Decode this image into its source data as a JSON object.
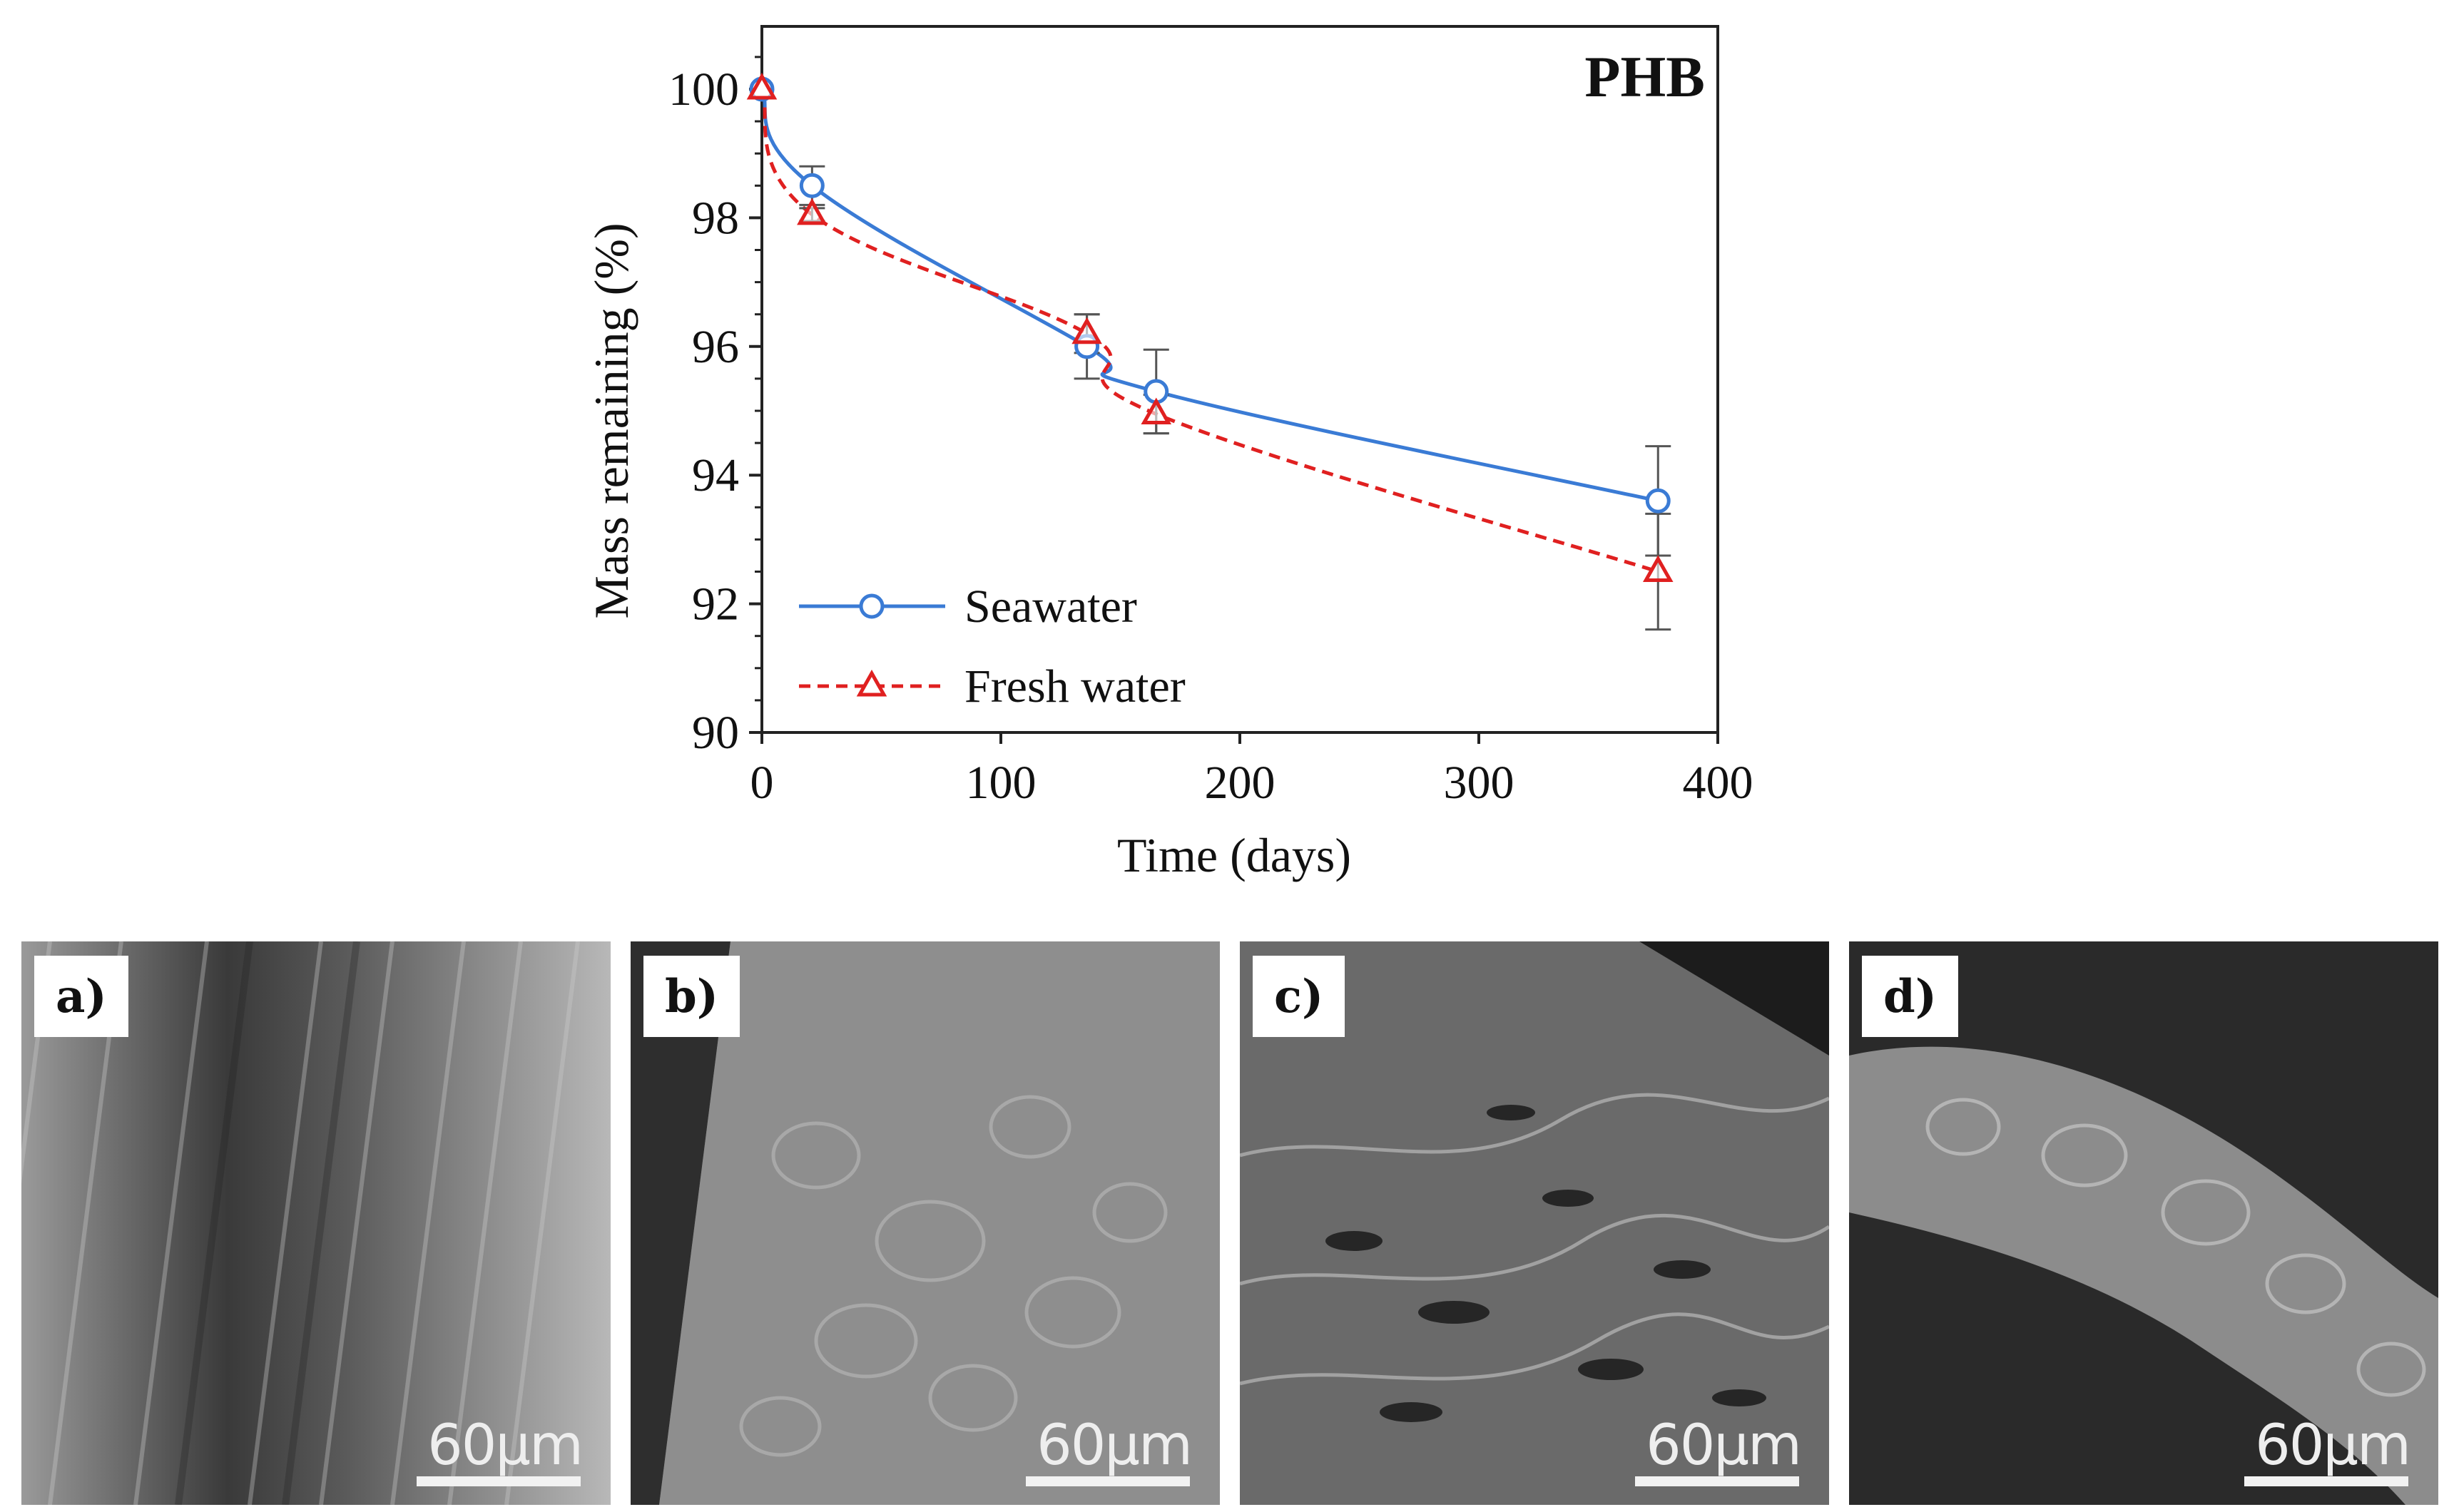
{
  "chart_data": {
    "type": "line",
    "title": "PHB",
    "xlabel": "Time (days)",
    "ylabel": "Mass remaining (%)",
    "xlim": [
      0,
      400
    ],
    "ylim": [
      90,
      101
    ],
    "xticks": [
      0,
      100,
      200,
      300,
      400
    ],
    "yticks": [
      90,
      92,
      94,
      96,
      98,
      100
    ],
    "xtick_labels": [
      "0",
      "100",
      "200",
      "300",
      "400"
    ],
    "ytick_labels": [
      "90",
      "92",
      "94",
      "96",
      "98",
      "100"
    ],
    "grid": false,
    "legend_position": "bottom-left",
    "series": [
      {
        "name": "Seawater",
        "marker": "circle",
        "line_style": "solid",
        "color": "#3a7bd5",
        "x": [
          0,
          21,
          136,
          165,
          375
        ],
        "y": [
          100,
          98.5,
          96.0,
          95.3,
          93.6
        ],
        "error": [
          0.05,
          0.3,
          0.5,
          0.65,
          0.85
        ]
      },
      {
        "name": "Fresh water",
        "marker": "triangle",
        "line_style": "dashed",
        "color": "#e02020",
        "x": [
          0,
          21,
          136,
          165,
          375
        ],
        "y": [
          100,
          98.05,
          96.2,
          94.95,
          92.5
        ],
        "error": [
          0.05,
          0.1,
          0.3,
          0.3,
          0.9
        ]
      }
    ]
  },
  "panels": [
    {
      "label": "a)",
      "scale": "60μm"
    },
    {
      "label": "b)",
      "scale": "60μm"
    },
    {
      "label": "c)",
      "scale": "60μm"
    },
    {
      "label": "d)",
      "scale": "60μm"
    }
  ]
}
